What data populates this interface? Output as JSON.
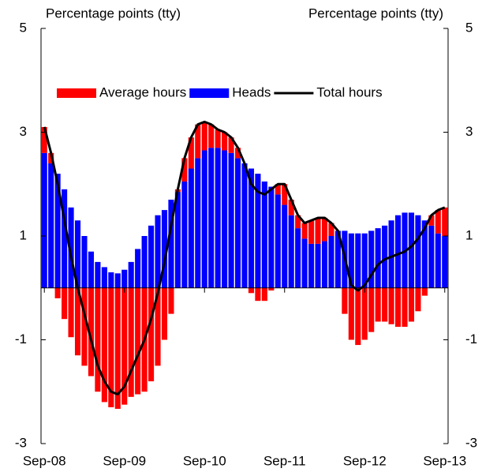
{
  "chart_data": {
    "type": "bar",
    "y_label": "Percentage points (tty)",
    "y2_label": "Percentage points (tty)",
    "categories": [
      "Sep-08",
      null,
      null,
      null,
      null,
      null,
      null,
      null,
      null,
      null,
      null,
      null,
      "Sep-09",
      null,
      null,
      null,
      null,
      null,
      null,
      null,
      null,
      null,
      null,
      null,
      "Sep-10",
      null,
      null,
      null,
      null,
      null,
      null,
      null,
      null,
      null,
      null,
      null,
      "Sep-11",
      null,
      null,
      null,
      null,
      null,
      null,
      null,
      null,
      null,
      null,
      null,
      "Sep-12",
      null,
      null,
      null,
      null,
      null,
      null,
      null,
      null,
      null,
      null,
      null,
      "Sep-13"
    ],
    "series": [
      {
        "name": "Average hours",
        "type": "bar",
        "color": "#ff0000",
        "values": [
          0.5,
          0.2,
          -0.2,
          -0.6,
          -0.95,
          -1.3,
          -1.5,
          -1.7,
          -2.0,
          -2.2,
          -2.3,
          -2.33,
          -2.25,
          -2.1,
          -2.05,
          -2.0,
          -1.8,
          -1.5,
          -1.0,
          -0.5,
          0.05,
          0.45,
          0.6,
          0.65,
          0.55,
          0.45,
          0.35,
          0.35,
          0.3,
          0.2,
          0.0,
          -0.1,
          -0.25,
          -0.25,
          -0.05,
          0.2,
          0.4,
          0.3,
          0.25,
          0.3,
          0.45,
          0.5,
          0.45,
          0.25,
          0.0,
          -0.5,
          -1.0,
          -1.1,
          -1.0,
          -0.85,
          -0.65,
          -0.65,
          -0.7,
          -0.75,
          -0.75,
          -0.65,
          -0.45,
          -0.15,
          0.2,
          0.45,
          0.55
        ]
      },
      {
        "name": "Heads",
        "type": "bar",
        "color": "#0000ff",
        "values": [
          2.6,
          2.4,
          2.2,
          1.9,
          1.55,
          1.3,
          1.0,
          0.7,
          0.5,
          0.4,
          0.3,
          0.28,
          0.35,
          0.5,
          0.75,
          1.0,
          1.2,
          1.4,
          1.5,
          1.7,
          1.85,
          2.05,
          2.3,
          2.5,
          2.65,
          2.7,
          2.7,
          2.65,
          2.6,
          2.5,
          2.4,
          2.3,
          2.2,
          2.05,
          1.95,
          1.8,
          1.6,
          1.4,
          1.15,
          0.95,
          0.85,
          0.85,
          0.9,
          1.0,
          1.1,
          1.1,
          1.05,
          1.05,
          1.05,
          1.1,
          1.15,
          1.2,
          1.3,
          1.4,
          1.45,
          1.45,
          1.4,
          1.3,
          1.2,
          1.05,
          1.0
        ]
      },
      {
        "name": "Total hours",
        "type": "line",
        "color": "#000000",
        "values": [
          3.1,
          2.6,
          2.0,
          1.3,
          0.6,
          0.0,
          -0.5,
          -1.0,
          -1.5,
          -1.8,
          -2.0,
          -2.05,
          -1.9,
          -1.6,
          -1.3,
          -1.0,
          -0.6,
          -0.1,
          0.5,
          1.2,
          1.9,
          2.5,
          2.9,
          3.15,
          3.2,
          3.15,
          3.05,
          3.0,
          2.9,
          2.7,
          2.4,
          2.0,
          1.85,
          1.8,
          1.9,
          2.0,
          2.0,
          1.7,
          1.4,
          1.25,
          1.3,
          1.35,
          1.35,
          1.25,
          1.1,
          0.6,
          0.05,
          -0.05,
          0.05,
          0.25,
          0.45,
          0.55,
          0.6,
          0.65,
          0.7,
          0.8,
          0.95,
          1.15,
          1.4,
          1.5,
          1.55
        ]
      }
    ],
    "ylim": [
      -3,
      5
    ],
    "yticks": [
      -3,
      -1,
      1,
      3,
      5
    ],
    "y2lim": [
      -3,
      5
    ],
    "y2ticks": [
      -3,
      -1,
      1,
      3,
      5
    ],
    "legend": "top"
  }
}
